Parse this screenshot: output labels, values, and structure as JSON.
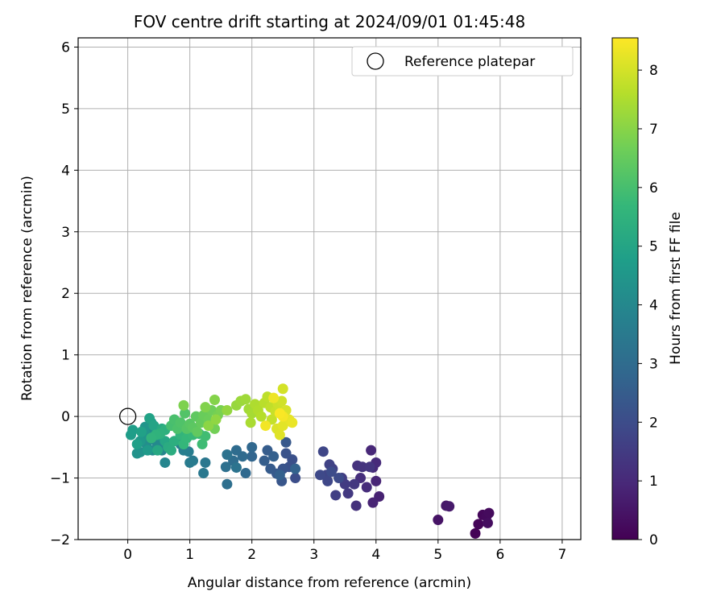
{
  "chart_data": {
    "type": "scatter",
    "title": "FOV centre drift starting at 2024/09/01 01:45:48",
    "xlabel": "Angular distance from reference (arcmin)",
    "ylabel": "Rotation from reference (arcmin)",
    "xlim": [
      -0.8,
      7.3
    ],
    "ylim": [
      -2.0,
      6.15
    ],
    "xticks": [
      0,
      1,
      2,
      3,
      4,
      5,
      6,
      7
    ],
    "yticks": [
      -2,
      -1,
      0,
      1,
      2,
      3,
      4,
      5,
      6
    ],
    "ytick_labels": [
      "−2",
      "−1",
      "0",
      "1",
      "2",
      "3",
      "4",
      "5",
      "6"
    ],
    "grid": true,
    "legend": {
      "location": "upper right",
      "entries": [
        {
          "label": "Reference platepar",
          "marker": "open-circle"
        }
      ]
    },
    "reference_point": {
      "x": 0,
      "y": 0
    },
    "colorbar": {
      "label": "Hours from first FF file",
      "colormap": "viridis",
      "range": [
        0,
        8.55
      ],
      "ticks": [
        0,
        1,
        2,
        3,
        4,
        5,
        6,
        7,
        8
      ],
      "colors": [
        "#440154",
        "#482878",
        "#3e4989",
        "#31688e",
        "#26828e",
        "#1f9e89",
        "#35b779",
        "#6ece58",
        "#b5de2b",
        "#fde725"
      ]
    },
    "series": [
      {
        "points": [
          [
            5.6,
            -1.9,
            0.05
          ],
          [
            5.65,
            -1.75,
            0.1
          ],
          [
            5.72,
            -1.6,
            0.15
          ],
          [
            5.78,
            -1.62,
            0.2
          ],
          [
            5.82,
            -1.57,
            0.25
          ],
          [
            5.8,
            -1.73,
            0.3
          ],
          [
            5.0,
            -1.68,
            0.45
          ],
          [
            5.13,
            -1.45,
            0.55
          ],
          [
            5.18,
            -1.46,
            0.6
          ],
          [
            4.05,
            -1.3,
            0.8
          ],
          [
            3.95,
            -1.4,
            0.85
          ],
          [
            4.0,
            -1.05,
            0.9
          ],
          [
            3.92,
            -0.55,
            0.95
          ],
          [
            3.95,
            -0.83,
            1.0
          ],
          [
            4.0,
            -0.75,
            1.05
          ],
          [
            3.85,
            -1.15,
            1.1
          ],
          [
            3.75,
            -1.0,
            1.15
          ],
          [
            3.68,
            -1.45,
            1.2
          ],
          [
            3.7,
            -0.8,
            1.25
          ],
          [
            3.78,
            -0.82,
            1.3
          ],
          [
            3.9,
            -0.82,
            1.35
          ],
          [
            3.65,
            -1.1,
            1.4
          ],
          [
            3.55,
            -1.25,
            1.45
          ],
          [
            3.5,
            -1.1,
            1.5
          ],
          [
            3.45,
            -1.0,
            1.55
          ],
          [
            3.35,
            -1.28,
            1.6
          ],
          [
            3.3,
            -0.85,
            1.65
          ],
          [
            3.25,
            -0.78,
            1.7
          ],
          [
            3.2,
            -0.95,
            1.75
          ],
          [
            3.15,
            -0.57,
            1.8
          ],
          [
            3.22,
            -1.05,
            1.85
          ],
          [
            3.1,
            -0.95,
            1.9
          ],
          [
            3.4,
            -1.0,
            1.95
          ],
          [
            3.28,
            -0.9,
            2.0
          ],
          [
            2.7,
            -1.0,
            2.05
          ],
          [
            2.65,
            -0.7,
            2.1
          ],
          [
            2.6,
            -0.82,
            2.15
          ],
          [
            2.55,
            -0.6,
            2.2
          ],
          [
            2.5,
            -0.85,
            2.25
          ],
          [
            2.48,
            -1.05,
            2.3
          ],
          [
            2.55,
            -0.42,
            2.35
          ],
          [
            2.4,
            -0.93,
            2.4
          ],
          [
            2.3,
            -0.85,
            2.45
          ],
          [
            2.25,
            -0.55,
            2.5
          ],
          [
            2.2,
            -0.72,
            2.55
          ],
          [
            2.35,
            -0.65,
            2.6
          ],
          [
            2.45,
            -0.95,
            2.65
          ],
          [
            2.7,
            -0.85,
            2.7
          ],
          [
            2.0,
            -0.65,
            2.8
          ],
          [
            2.0,
            -0.5,
            2.85
          ],
          [
            1.9,
            -0.92,
            2.9
          ],
          [
            1.85,
            -0.65,
            2.95
          ],
          [
            1.75,
            -0.55,
            3.0
          ],
          [
            1.7,
            -0.72,
            3.05
          ],
          [
            1.6,
            -1.1,
            3.1
          ],
          [
            1.58,
            -0.82,
            3.15
          ],
          [
            1.6,
            -0.62,
            3.2
          ],
          [
            1.75,
            -0.83,
            3.25
          ],
          [
            1.25,
            -0.75,
            3.4
          ],
          [
            1.22,
            -0.92,
            3.45
          ],
          [
            1.05,
            -0.72,
            3.5
          ],
          [
            1.0,
            -0.75,
            3.55
          ],
          [
            0.98,
            -0.57,
            3.6
          ],
          [
            0.9,
            -0.55,
            3.65
          ],
          [
            0.85,
            -0.45,
            3.7
          ],
          [
            0.6,
            -0.75,
            3.9
          ],
          [
            0.55,
            -0.55,
            3.95
          ],
          [
            0.5,
            -0.45,
            4.0
          ],
          [
            0.45,
            -0.4,
            4.05
          ],
          [
            0.4,
            -0.55,
            4.1
          ],
          [
            0.35,
            -0.2,
            4.15
          ],
          [
            0.3,
            -0.45,
            4.2
          ],
          [
            0.25,
            -0.35,
            4.25
          ],
          [
            0.2,
            -0.58,
            4.3
          ],
          [
            0.15,
            -0.6,
            4.35
          ],
          [
            0.3,
            -0.3,
            4.4
          ],
          [
            0.28,
            -0.17,
            4.45
          ],
          [
            0.38,
            -0.1,
            4.5
          ],
          [
            0.2,
            -0.4,
            4.55
          ],
          [
            0.32,
            -0.55,
            4.6
          ],
          [
            0.05,
            -0.3,
            4.7
          ],
          [
            0.08,
            -0.22,
            4.75
          ],
          [
            0.15,
            -0.45,
            4.8
          ],
          [
            0.22,
            -0.25,
            4.85
          ],
          [
            0.35,
            -0.03,
            4.9
          ],
          [
            0.42,
            -0.15,
            4.95
          ],
          [
            0.5,
            -0.3,
            5.0
          ],
          [
            0.6,
            -0.4,
            5.05
          ],
          [
            0.48,
            -0.55,
            5.1
          ],
          [
            0.55,
            -0.2,
            5.15
          ],
          [
            0.65,
            -0.5,
            5.25
          ],
          [
            0.7,
            -0.55,
            5.3
          ],
          [
            0.75,
            -0.4,
            5.35
          ],
          [
            0.6,
            -0.22,
            5.4
          ],
          [
            0.52,
            -0.28,
            5.45
          ],
          [
            0.45,
            -0.3,
            5.5
          ],
          [
            0.38,
            -0.35,
            5.55
          ],
          [
            0.85,
            -0.3,
            5.6
          ],
          [
            0.9,
            -0.45,
            5.65
          ],
          [
            0.95,
            -0.35,
            5.7
          ],
          [
            1.05,
            -0.3,
            5.75
          ],
          [
            1.15,
            -0.28,
            5.8
          ],
          [
            1.2,
            -0.45,
            5.85
          ],
          [
            1.25,
            -0.32,
            5.9
          ],
          [
            0.7,
            -0.15,
            6.0
          ],
          [
            0.75,
            -0.05,
            6.05
          ],
          [
            0.8,
            -0.2,
            6.1
          ],
          [
            0.85,
            -0.1,
            6.15
          ],
          [
            0.92,
            0.05,
            6.2
          ],
          [
            0.95,
            -0.2,
            6.25
          ],
          [
            1.0,
            -0.12,
            6.3
          ],
          [
            1.05,
            -0.18,
            6.35
          ],
          [
            1.1,
            0.0,
            6.4
          ],
          [
            1.12,
            -0.25,
            6.45
          ],
          [
            1.18,
            -0.1,
            6.5
          ],
          [
            1.22,
            0.02,
            6.55
          ],
          [
            1.3,
            -0.05,
            6.6
          ],
          [
            1.35,
            0.1,
            6.65
          ],
          [
            1.4,
            -0.2,
            6.7
          ],
          [
            1.45,
            0.02,
            6.75
          ],
          [
            1.5,
            0.1,
            6.8
          ],
          [
            0.9,
            0.18,
            6.85
          ],
          [
            1.25,
            0.15,
            6.9
          ],
          [
            1.4,
            0.27,
            6.95
          ],
          [
            1.3,
            -0.15,
            7.05
          ],
          [
            1.42,
            -0.05,
            7.1
          ],
          [
            1.6,
            0.1,
            7.15
          ],
          [
            1.75,
            0.18,
            7.2
          ],
          [
            1.82,
            0.25,
            7.25
          ],
          [
            1.9,
            0.28,
            7.3
          ],
          [
            1.95,
            0.12,
            7.35
          ],
          [
            2.0,
            0.05,
            7.4
          ],
          [
            1.98,
            -0.1,
            7.45
          ],
          [
            2.05,
            0.2,
            7.5
          ],
          [
            2.1,
            0.1,
            7.55
          ],
          [
            2.15,
            0.0,
            7.6
          ],
          [
            2.2,
            0.22,
            7.65
          ],
          [
            2.25,
            0.32,
            7.7
          ],
          [
            2.3,
            0.15,
            7.75
          ],
          [
            2.32,
            -0.05,
            7.8
          ],
          [
            2.38,
            0.08,
            7.85
          ],
          [
            2.42,
            0.2,
            7.9
          ],
          [
            2.48,
            0.25,
            7.95
          ],
          [
            2.5,
            0.45,
            8.0
          ],
          [
            2.55,
            0.1,
            8.05
          ],
          [
            2.4,
            -0.2,
            8.1
          ],
          [
            2.45,
            -0.3,
            8.15
          ],
          [
            2.5,
            -0.15,
            8.2
          ],
          [
            2.6,
            -0.05,
            8.25
          ],
          [
            2.65,
            -0.1,
            8.3
          ],
          [
            2.35,
            0.3,
            8.35
          ],
          [
            2.22,
            -0.15,
            8.4
          ],
          [
            2.5,
            0.0,
            8.45
          ],
          [
            2.45,
            0.05,
            8.5
          ]
        ]
      }
    ]
  }
}
